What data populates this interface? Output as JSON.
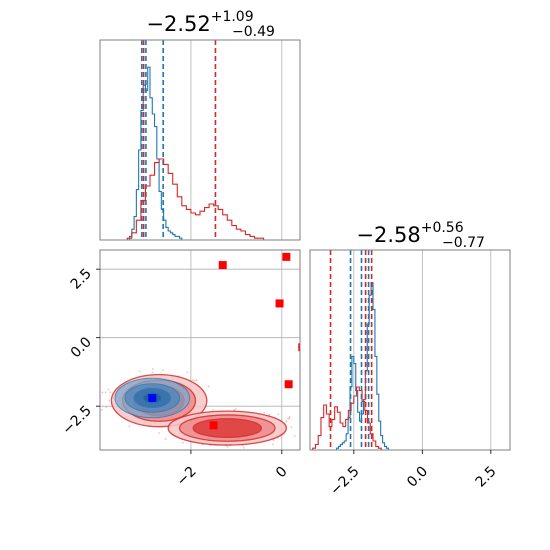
{
  "chart_data": [
    {
      "type": "histogram",
      "panel": "marginal-x",
      "title": {
        "main": "−2.52",
        "sup": "+1.09",
        "sub": "−0.49"
      },
      "xlim": [
        -4.0,
        0.4
      ],
      "grid": true,
      "series": [
        {
          "color": "#1f77b4",
          "step": {
            "x0": -3.4,
            "dx": 0.05,
            "heights": [
              0.0,
              0.02,
              0.06,
              0.13,
              0.28,
              0.5,
              0.72,
              0.86,
              0.83,
              0.96,
              0.79,
              0.7,
              0.63,
              0.45,
              0.27,
              0.17,
              0.11,
              0.07,
              0.05,
              0.04,
              0.03,
              0.02,
              0.02,
              0.01,
              0.0
            ]
          },
          "quantile_lines": [
            -3.08,
            -2.99,
            -2.61
          ]
        },
        {
          "color": "#d62728",
          "step": {
            "x0": -3.4,
            "dx": 0.1,
            "heights": [
              0.01,
              0.04,
              0.11,
              0.22,
              0.3,
              0.36,
              0.43,
              0.45,
              0.42,
              0.37,
              0.31,
              0.24,
              0.19,
              0.17,
              0.15,
              0.14,
              0.16,
              0.18,
              0.2,
              0.19,
              0.17,
              0.14,
              0.11,
              0.08,
              0.06,
              0.05,
              0.03,
              0.02,
              0.01,
              0.01,
              0.0
            ]
          },
          "quantile_lines": [
            -3.04,
            -1.46
          ]
        }
      ]
    },
    {
      "type": "scatter-density",
      "panel": "joint",
      "xlim": [
        -4.0,
        0.4
      ],
      "ylim": [
        -4.1,
        3.2
      ],
      "xticks": [
        "−2",
        "0"
      ],
      "xtick_values": [
        -2,
        0
      ],
      "yticks": [
        "2.5",
        "0.0",
        "−2.5"
      ],
      "ytick_values": [
        2.5,
        0.0,
        -2.5
      ],
      "grid": true,
      "blue_contours": {
        "center": [
          -2.85,
          -2.2
        ],
        "radii": [
          [
            0.82,
            0.72
          ],
          [
            0.6,
            0.52
          ],
          [
            0.4,
            0.35
          ],
          [
            0.2,
            0.18
          ]
        ]
      },
      "red_contours": [
        {
          "center": [
            -2.7,
            -2.3
          ],
          "radii": [
            [
              1.05,
              0.95
            ],
            [
              0.8,
              0.75
            ],
            [
              0.55,
              0.55
            ]
          ]
        },
        {
          "center": [
            -1.2,
            -3.3
          ],
          "radii": [
            [
              1.3,
              0.62
            ],
            [
              1.05,
              0.48
            ],
            [
              0.75,
              0.34
            ]
          ]
        }
      ],
      "red_markers": [
        [
          -1.3,
          2.65
        ],
        [
          0.1,
          2.95
        ],
        [
          -0.05,
          1.25
        ],
        [
          0.45,
          -0.35
        ],
        [
          0.15,
          -1.7
        ],
        [
          -1.5,
          -3.2
        ]
      ],
      "blue_marker": [
        -2.85,
        -2.2
      ]
    },
    {
      "type": "histogram",
      "panel": "marginal-y",
      "title": {
        "main": "−2.58",
        "sup": "+0.56",
        "sub": "−0.77"
      },
      "xlim": [
        -4.1,
        3.2
      ],
      "xticks": [
        "−2.5",
        "0.0",
        "2.5"
      ],
      "xtick_values": [
        -2.5,
        0.0,
        2.5
      ],
      "grid": true,
      "series": [
        {
          "color": "#1f77b4",
          "step": {
            "x0": -3.2,
            "dx": 0.07,
            "heights": [
              0.0,
              0.01,
              0.02,
              0.03,
              0.04,
              0.05,
              0.09,
              0.18,
              0.35,
              0.52,
              0.48,
              0.33,
              0.21,
              0.16,
              0.2,
              0.28,
              0.44,
              0.7,
              0.86,
              0.93,
              0.78,
              0.52,
              0.31,
              0.16,
              0.08,
              0.04,
              0.02,
              0.01,
              0.0
            ]
          },
          "quantile_lines": [
            -2.62,
            -2.22,
            -1.96
          ]
        },
        {
          "color": "#d62728",
          "step": {
            "x0": -4.1,
            "dx": 0.1,
            "heights": [
              0.0,
              0.01,
              0.03,
              0.08,
              0.18,
              0.25,
              0.2,
              0.13,
              0.17,
              0.24,
              0.21,
              0.15,
              0.13,
              0.17,
              0.22,
              0.26,
              0.3,
              0.35,
              0.33,
              0.27,
              0.22,
              0.15,
              0.09,
              0.05,
              0.02,
              0.01,
              0.0
            ]
          },
          "quantile_lines": [
            -3.35,
            -2.07,
            -1.85
          ]
        }
      ]
    }
  ]
}
